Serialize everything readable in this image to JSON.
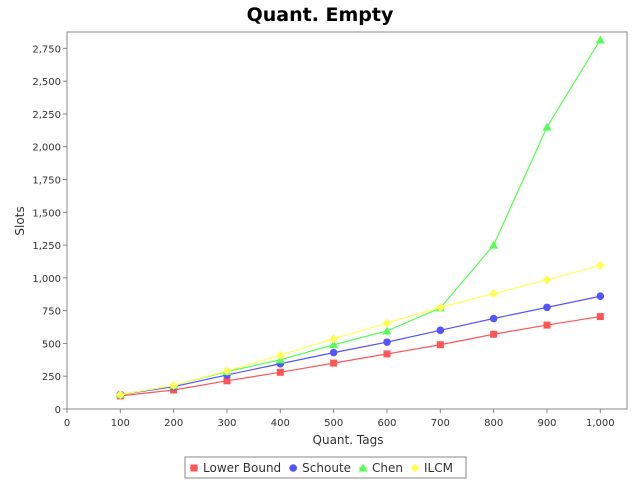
{
  "chart_data": {
    "type": "line",
    "title": "Quant. Empty",
    "xlabel": "Quant. Tags",
    "ylabel": "Slots",
    "x": [
      100,
      200,
      300,
      400,
      500,
      600,
      700,
      800,
      900,
      1000
    ],
    "xlim": [
      0,
      1050
    ],
    "ylim": [
      0,
      2875
    ],
    "x_ticks": [
      0,
      100,
      200,
      300,
      400,
      500,
      600,
      700,
      800,
      900,
      1000
    ],
    "x_tick_labels": [
      "0",
      "100",
      "200",
      "300",
      "400",
      "500",
      "600",
      "700",
      "800",
      "900",
      "1,000"
    ],
    "y_ticks": [
      0,
      250,
      500,
      750,
      1000,
      1250,
      1500,
      1750,
      2000,
      2250,
      2500,
      2750
    ],
    "y_tick_labels": [
      "0",
      "250",
      "500",
      "750",
      "1,000",
      "1,250",
      "1,500",
      "1,750",
      "2,000",
      "2,250",
      "2,500",
      "2,750"
    ],
    "grid": false,
    "legend_position": "bottom",
    "series": [
      {
        "name": "Lower Bound",
        "color": "#ff5555",
        "marker": "square",
        "values": [
          100,
          145,
          215,
          280,
          350,
          420,
          490,
          570,
          640,
          705
        ]
      },
      {
        "name": "Schoute",
        "color": "#5555ff",
        "marker": "circle",
        "values": [
          110,
          170,
          260,
          345,
          430,
          510,
          600,
          690,
          775,
          860
        ]
      },
      {
        "name": "Chen",
        "color": "#55ff55",
        "marker": "triangle",
        "values": [
          110,
          180,
          285,
          375,
          490,
          595,
          770,
          1250,
          2150,
          2815
        ]
      },
      {
        "name": "ILCM",
        "color": "#ffff55",
        "marker": "diamond",
        "values": [
          110,
          180,
          290,
          410,
          535,
          655,
          775,
          880,
          985,
          1095
        ]
      }
    ]
  }
}
